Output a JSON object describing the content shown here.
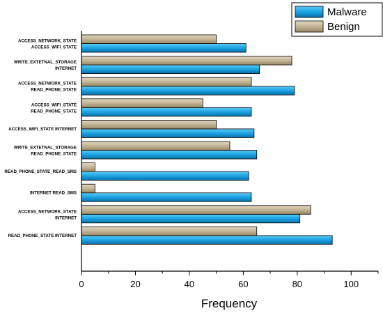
{
  "chart_data": {
    "type": "bar",
    "orientation": "horizontal",
    "categories": [
      [
        "ACCESS_NETWORK_STATE",
        "ACCESS_WIFI_STATE"
      ],
      [
        "WRITE_EXTETNAL_STORAGE",
        "INTERNET"
      ],
      [
        "ACCESS_NETWORK_STATE",
        "READ_PHONE_STATE"
      ],
      [
        "ACCESS_WIFI_STATE",
        "READ_PHONE_STATE"
      ],
      [
        "ACCESS_WIFI_STATE INTERNET"
      ],
      [
        "WRITE_EXTETNAL_STORAGE",
        "READ_PHONE_STATE"
      ],
      [
        "READ_PHONE_STATE_READ_SMS"
      ],
      [
        "INTERNET READ_SMS"
      ],
      [
        "ACCESS_NETWORK_STATE",
        "INTERNET"
      ],
      [
        "READ_PHONE_STATE INTERNET"
      ]
    ],
    "series": [
      {
        "name": "Malware",
        "color": "#1aa3e3",
        "values": [
          61,
          66,
          79,
          63,
          64,
          65,
          62,
          63,
          81,
          93
        ]
      },
      {
        "name": "Benign",
        "color": "#c2b496",
        "values": [
          50,
          78,
          63,
          45,
          50,
          55,
          5,
          5,
          85,
          65
        ]
      }
    ],
    "xlabel": "Frequency",
    "ylabel": "",
    "xlim": [
      0,
      110
    ],
    "xticks": [
      "0",
      "20",
      "40",
      "60",
      "80",
      "100"
    ],
    "legend_position": "top-right",
    "grid": false
  }
}
